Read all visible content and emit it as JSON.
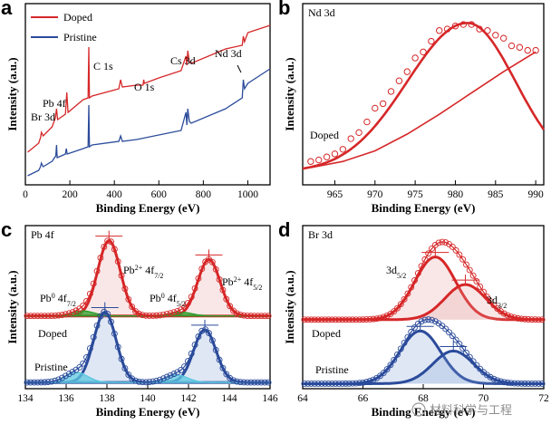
{
  "chart_data": [
    {
      "panel": "a",
      "type": "line",
      "xlabel": "Binding Energy (eV)",
      "ylabel": "Intensity (a.u.)",
      "xlim": [
        0,
        1100
      ],
      "xticks": [
        0,
        200,
        400,
        600,
        800,
        1000
      ],
      "legend": {
        "placement": "top-left"
      },
      "series": [
        {
          "name": "Doped",
          "color": "#d62728",
          "x": [
            10,
            60,
            68,
            72,
            80,
            120,
            135,
            140,
            145,
            180,
            186,
            192,
            260,
            282,
            285,
            288,
            300,
            420,
            428,
            436,
            500,
            529,
            532,
            535,
            600,
            700,
            722,
            726,
            730,
            737,
            745,
            900,
            975,
            980,
            985,
            1000,
            1050,
            1100
          ],
          "y": [
            0.18,
            0.23,
            0.26,
            0.29,
            0.27,
            0.32,
            0.37,
            0.42,
            0.36,
            0.39,
            0.51,
            0.4,
            0.47,
            0.48,
            0.76,
            0.48,
            0.49,
            0.53,
            0.58,
            0.54,
            0.55,
            0.55,
            0.58,
            0.56,
            0.59,
            0.63,
            0.71,
            0.66,
            0.74,
            0.68,
            0.67,
            0.75,
            0.77,
            0.82,
            0.79,
            0.84,
            0.86,
            0.88
          ]
        },
        {
          "name": "Pristine",
          "color": "#2b4b9b",
          "x": [
            10,
            60,
            68,
            72,
            80,
            120,
            137,
            140,
            143,
            180,
            184,
            188,
            260,
            282,
            285,
            288,
            300,
            420,
            428,
            436,
            500,
            700,
            722,
            726,
            730,
            737,
            745,
            900,
            975,
            980,
            985,
            1000,
            1050,
            1100
          ],
          "y": [
            0.05,
            0.08,
            0.1,
            0.12,
            0.1,
            0.13,
            0.16,
            0.22,
            0.15,
            0.17,
            0.2,
            0.17,
            0.2,
            0.21,
            0.44,
            0.21,
            0.22,
            0.24,
            0.27,
            0.24,
            0.25,
            0.3,
            0.4,
            0.33,
            0.42,
            0.35,
            0.34,
            0.42,
            0.48,
            0.58,
            0.53,
            0.56,
            0.6,
            0.64
          ]
        }
      ],
      "annotations": [
        "Br 3d",
        "Pb 4f",
        "C 1s",
        "O 1s",
        "Cs 3d",
        "Nd 3d"
      ]
    },
    {
      "panel": "b",
      "type": "scatter",
      "corner_label": "Nd 3d",
      "xlabel": "Binding Energy (eV)",
      "ylabel": "Intensity (a.u.)",
      "xlim": [
        961,
        991
      ],
      "xticks": [
        965,
        970,
        975,
        980,
        985,
        990
      ],
      "annotations": [
        "Doped"
      ],
      "color": "#d62728",
      "points": {
        "x": [
          962,
          963,
          964,
          965,
          966,
          967,
          968,
          969,
          970,
          971,
          972,
          973,
          974,
          975,
          976,
          977,
          978,
          979,
          980,
          981,
          982,
          983,
          984,
          985,
          986,
          987,
          988,
          989,
          990
        ],
        "y": [
          0.07,
          0.08,
          0.1,
          0.12,
          0.15,
          0.22,
          0.26,
          0.33,
          0.42,
          0.45,
          0.53,
          0.6,
          0.66,
          0.75,
          0.79,
          0.86,
          0.93,
          0.94,
          0.96,
          0.97,
          0.97,
          0.94,
          0.93,
          0.9,
          0.88,
          0.83,
          0.82,
          0.8,
          0.8
        ]
      },
      "fit_peak": {
        "center": 981.5,
        "height": 0.98,
        "sigma_left": 7.5,
        "sigma_right": 6.0
      },
      "background_curve": {
        "x": [
          962,
          966,
          970,
          974,
          978,
          982,
          986,
          990
        ],
        "y": [
          0.03,
          0.07,
          0.14,
          0.25,
          0.38,
          0.52,
          0.66,
          0.79
        ]
      }
    },
    {
      "panel": "c",
      "type": "scatter",
      "corner_label": "Pb 4f",
      "xlabel": "Binding Energy (eV)",
      "ylabel": "Intensity (a.u.)",
      "xlim": [
        134,
        146
      ],
      "xticks": [
        134,
        136,
        138,
        140,
        142,
        144,
        146
      ],
      "annotations": [
        "Doped",
        "Pristine"
      ],
      "peak_labels": [
        {
          "element": "Pb",
          "sup": "2+",
          "orbital": "4f",
          "sub": "7/2"
        },
        {
          "element": "Pb",
          "sup": "2+",
          "orbital": "4f",
          "sub": "5/2"
        },
        {
          "element": "Pb",
          "sup": "0",
          "orbital": "4f",
          "sub": "7/2"
        },
        {
          "element": "Pb",
          "sup": "0",
          "orbital": "4f",
          "sub": "5/2"
        }
      ],
      "doped": {
        "baseline": 0.58,
        "color": "#d62728",
        "components": [
          {
            "label": "Pb2+ 4f7/2",
            "center": 138.1,
            "height": 0.6,
            "sigma": 0.55
          },
          {
            "label": "Pb2+ 4f5/2",
            "center": 143.0,
            "height": 0.45,
            "sigma": 0.55
          },
          {
            "label": "Pb0 4f7/2",
            "center": 136.8,
            "height": 0.04,
            "sigma": 0.55
          },
          {
            "label": "Pb0 4f5/2",
            "center": 141.6,
            "height": 0.03,
            "sigma": 0.55
          }
        ]
      },
      "pristine": {
        "baseline": 0.05,
        "color": "#2b4b9b",
        "components": [
          {
            "label": "Pb2+ 4f7/2",
            "center": 137.9,
            "height": 0.56,
            "sigma": 0.55
          },
          {
            "label": "Pb2+ 4f5/2",
            "center": 142.8,
            "height": 0.42,
            "sigma": 0.55
          },
          {
            "label": "Pb0 4f7/2",
            "center": 136.5,
            "height": 0.08,
            "sigma": 0.55
          },
          {
            "label": "Pb0 4f5/2",
            "center": 141.4,
            "height": 0.06,
            "sigma": 0.55
          }
        ]
      }
    },
    {
      "panel": "d",
      "type": "scatter",
      "corner_label": "Br 3d",
      "xlabel": "Binding Energy (eV)",
      "ylabel": "Intensity (a.u.)",
      "xlim": [
        64,
        72
      ],
      "xticks": [
        64,
        66,
        68,
        70,
        72
      ],
      "annotations": [
        "Doped",
        "Pristine"
      ],
      "peak_labels": [
        {
          "orbital": "3d",
          "sub": "5/2"
        },
        {
          "orbital": "3d",
          "sub": "3/2"
        }
      ],
      "doped": {
        "baseline": 0.55,
        "color": "#d62728",
        "components": [
          {
            "label": "3d5/2",
            "center": 68.4,
            "height": 0.5,
            "sigma": 0.68
          },
          {
            "label": "3d3/2",
            "center": 69.4,
            "height": 0.28,
            "sigma": 0.68
          }
        ]
      },
      "pristine": {
        "baseline": 0.04,
        "color": "#2b4b9b",
        "components": [
          {
            "label": "3d5/2",
            "center": 67.9,
            "height": 0.42,
            "sigma": 0.68
          },
          {
            "label": "3d3/2",
            "center": 69.0,
            "height": 0.26,
            "sigma": 0.68
          }
        ]
      }
    }
  ],
  "watermark": "材料科学与工程"
}
